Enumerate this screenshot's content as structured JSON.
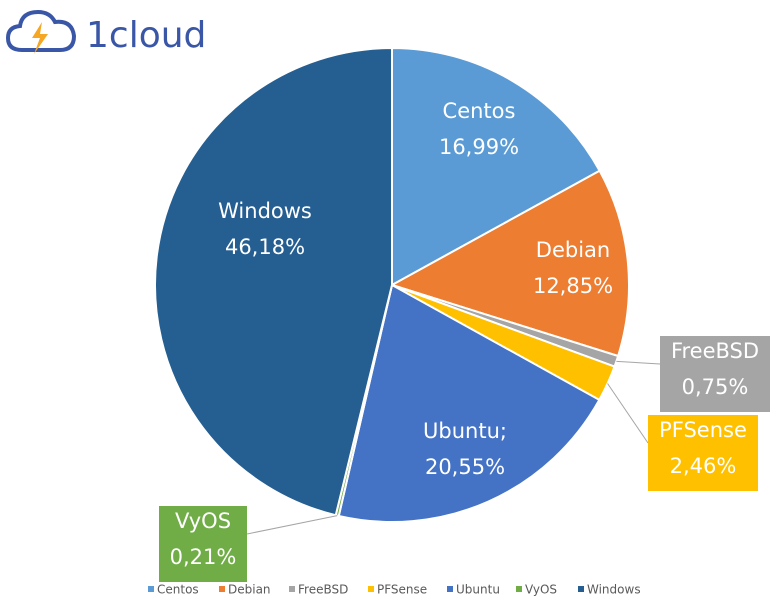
{
  "logo": "1cloud",
  "chart_data": {
    "type": "pie",
    "categories": [
      "Centos",
      "Debian",
      "FreeBSD",
      "PFSense",
      "Ubuntu",
      "VyOS",
      "Windows"
    ],
    "label_names": [
      "Centos",
      "Debian",
      "FreeBSD",
      "PFSense",
      "Ubuntu;",
      "VyOS",
      "Windows"
    ],
    "values": [
      16.99,
      12.85,
      0.75,
      2.46,
      20.55,
      0.21,
      46.18
    ],
    "value_labels": [
      "16,99%",
      "12,85%",
      "0,75%",
      "2,46%",
      "20,55%",
      "0,21%",
      "46,18%"
    ],
    "colors": [
      "#5b9bd5",
      "#ed7d31",
      "#a5a5a5",
      "#ffc000",
      "#4472c4",
      "#70ad47",
      "#255e91"
    ],
    "legend": "bottom"
  }
}
